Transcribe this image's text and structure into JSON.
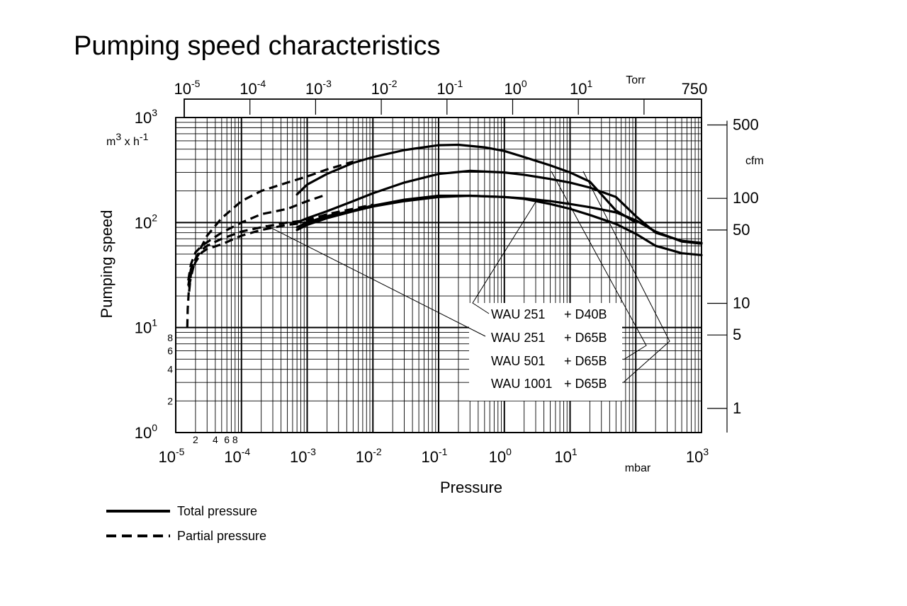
{
  "chart_data": {
    "type": "line",
    "title": "Pumping speed characteristics",
    "xlabel": "Pressure",
    "ylabel": "Pumping speed",
    "x_unit": "mbar",
    "y_unit": "m3 x h-1",
    "x_scale": "log",
    "y_scale": "log",
    "xlim": [
      1e-05,
      1000
    ],
    "ylim": [
      1,
      1000
    ],
    "grid": true,
    "x_ticks": [
      {
        "value": 1e-05,
        "base": "10",
        "exp": "-5"
      },
      {
        "value": 0.0001,
        "base": "10",
        "exp": "-4"
      },
      {
        "value": 0.001,
        "base": "10",
        "exp": "-3"
      },
      {
        "value": 0.01,
        "base": "10",
        "exp": "-2"
      },
      {
        "value": 0.1,
        "base": "10",
        "exp": "-1"
      },
      {
        "value": 1,
        "base": "10",
        "exp": "0"
      },
      {
        "value": 10,
        "base": "10",
        "exp": "1"
      },
      {
        "value": 1000,
        "base": "10",
        "exp": "3"
      }
    ],
    "x_minor_labels": [
      {
        "value": 2e-05,
        "label": "2"
      },
      {
        "value": 4e-05,
        "label": "4"
      },
      {
        "value": 6e-05,
        "label": "6"
      },
      {
        "value": 8e-05,
        "label": "8"
      }
    ],
    "y_ticks": [
      {
        "value": 1,
        "base": "10",
        "exp": "0"
      },
      {
        "value": 10,
        "base": "10",
        "exp": "1"
      },
      {
        "value": 100,
        "base": "10",
        "exp": "2"
      },
      {
        "value": 1000,
        "base": "10",
        "exp": "3"
      }
    ],
    "y_minor_labels": [
      {
        "value": 2,
        "label": "2"
      },
      {
        "value": 4,
        "label": "4"
      },
      {
        "value": 6,
        "label": "6"
      },
      {
        "value": 8,
        "label": "8"
      }
    ],
    "top_axis": {
      "unit": "Torr",
      "ticks": [
        {
          "value": 1e-05,
          "base": "10",
          "exp": "-5"
        },
        {
          "value": 0.0001,
          "base": "10",
          "exp": "-4"
        },
        {
          "value": 0.001,
          "base": "10",
          "exp": "-3"
        },
        {
          "value": 0.01,
          "base": "10",
          "exp": "-2"
        },
        {
          "value": 0.1,
          "base": "10",
          "exp": "-1"
        },
        {
          "value": 1,
          "base": "10",
          "exp": "0"
        },
        {
          "value": 10,
          "base": "10",
          "exp": "1"
        },
        {
          "value": 100,
          "base": "",
          "exp": ""
        },
        {
          "value": 750,
          "base": "750",
          "exp": ""
        }
      ]
    },
    "right_axis": {
      "unit": "cfm",
      "ticks": [
        {
          "value": 500,
          "label": "500"
        },
        {
          "value": 100,
          "label": "100"
        },
        {
          "value": 50,
          "label": "50"
        },
        {
          "value": 10,
          "label": "10"
        },
        {
          "value": 5,
          "label": "5"
        },
        {
          "value": 1,
          "label": "1"
        }
      ]
    },
    "series": [
      {
        "name": "WAU 251 + D40B",
        "style": "total",
        "x": [
          0.0007,
          0.001,
          0.002,
          0.005,
          0.01,
          0.03,
          0.1,
          0.3,
          1,
          2,
          5,
          10,
          20,
          50,
          100,
          200,
          500,
          1000
        ],
        "y": [
          85,
          95,
          110,
          128,
          142,
          160,
          175,
          180,
          175,
          170,
          160,
          150,
          140,
          125,
          105,
          82,
          66,
          63
        ]
      },
      {
        "name": "WAU 251 + D65B",
        "style": "total",
        "x": [
          0.0007,
          0.001,
          0.002,
          0.005,
          0.01,
          0.03,
          0.1,
          0.3,
          1,
          2,
          5,
          10,
          20,
          50,
          100,
          200,
          500,
          1000
        ],
        "y": [
          90,
          100,
          115,
          130,
          145,
          165,
          180,
          180,
          175,
          168,
          150,
          135,
          118,
          97,
          78,
          60,
          51,
          49
        ]
      },
      {
        "name": "WAU 501 + D65B",
        "style": "total",
        "x": [
          0.0007,
          0.001,
          0.002,
          0.005,
          0.01,
          0.03,
          0.1,
          0.3,
          1,
          2,
          5,
          10,
          20,
          50,
          100,
          200,
          500,
          1000
        ],
        "y": [
          100,
          110,
          128,
          160,
          190,
          240,
          290,
          310,
          300,
          285,
          260,
          240,
          215,
          175,
          115,
          80,
          67,
          64
        ]
      },
      {
        "name": "WAU 1001+ D65B",
        "style": "total",
        "x": [
          0.0007,
          0.001,
          0.002,
          0.005,
          0.01,
          0.03,
          0.1,
          0.2,
          0.5,
          1,
          2,
          5,
          10,
          20,
          30,
          50,
          100
        ],
        "y": [
          185,
          230,
          290,
          370,
          420,
          490,
          545,
          550,
          520,
          480,
          420,
          350,
          300,
          245,
          185,
          130,
          100
        ]
      },
      {
        "name": "WAU 251 + D40B",
        "style": "partial",
        "x": [
          1.6e-05,
          1.7e-05,
          2e-05,
          2.5e-05,
          3e-05,
          5e-05,
          0.0001,
          0.0002,
          0.0005,
          0.001,
          0.002,
          0.005,
          0.01
        ],
        "y": [
          22,
          32,
          42,
          52,
          56,
          62,
          75,
          85,
          95,
          100,
          115,
          130,
          145
        ]
      },
      {
        "name": "WAU 251 + D65B",
        "style": "partial",
        "x": [
          1.55e-05,
          1.7e-05,
          2e-05,
          2.5e-05,
          3e-05,
          5e-05,
          0.0001,
          0.0002,
          0.0005,
          0.001,
          0.002,
          0.005,
          0.01
        ],
        "y": [
          25,
          36,
          45,
          55,
          60,
          70,
          82,
          90,
          100,
          105,
          120,
          135,
          148
        ]
      },
      {
        "name": "WAU 501 + D65B",
        "style": "partial",
        "x": [
          1.55e-05,
          1.7e-05,
          2e-05,
          2.5e-05,
          3e-05,
          5e-05,
          0.0001,
          0.0002,
          0.0005,
          0.001,
          0.002
        ],
        "y": [
          28,
          40,
          52,
          60,
          65,
          80,
          100,
          120,
          135,
          160,
          185
        ]
      },
      {
        "name": "WAU 1001+ D65B",
        "style": "partial",
        "x": [
          1.5e-05,
          1.52e-05,
          1.6e-05,
          1.8e-05,
          2e-05,
          2.5e-05,
          3e-05,
          5e-05,
          0.0001,
          0.0002,
          0.0005,
          0.001,
          0.002,
          0.005
        ],
        "y": [
          10,
          15,
          25,
          35,
          45,
          60,
          75,
          110,
          160,
          200,
          240,
          275,
          320,
          380
        ]
      }
    ],
    "callout_labels": [
      {
        "model": "WAU 251",
        "pump": "+ D40B"
      },
      {
        "model": "WAU 251",
        "pump": "+ D65B"
      },
      {
        "model": "WAU 501",
        "pump": "+ D65B"
      },
      {
        "model": "WAU 1001",
        "pump": "+ D65B"
      }
    ],
    "legend": [
      {
        "label": "Total pressure",
        "style": "solid"
      },
      {
        "label": "Partial pressure",
        "style": "dashed"
      }
    ],
    "legend_position": "bottom-left"
  }
}
